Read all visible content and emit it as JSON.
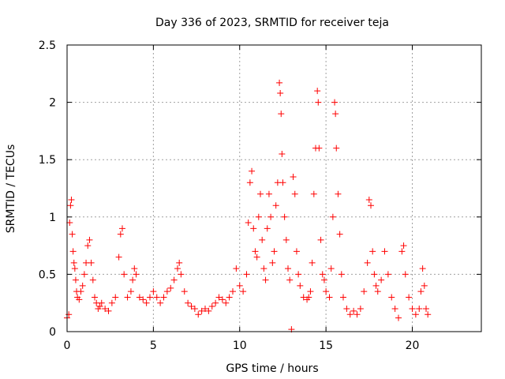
{
  "chart_data": {
    "type": "scatter",
    "title": "Day 336 of 2023, SRMTID for receiver teja",
    "xlabel": "GPS time / hours",
    "ylabel": "SRMTID / TECUs",
    "xlim": [
      0,
      24
    ],
    "ylim": [
      0,
      2.5
    ],
    "xticks": [
      0,
      5,
      10,
      15,
      20
    ],
    "yticks": [
      0,
      0.5,
      1,
      1.5,
      2,
      2.5
    ],
    "xtick_labels": [
      "0",
      "5",
      "10",
      "15",
      "20"
    ],
    "ytick_labels": [
      "0",
      "0.5",
      "1",
      "1.5",
      "2",
      "2.5"
    ],
    "grid": true,
    "marker": "+",
    "series": [
      {
        "name": "SRMTID",
        "color": "#ff0000",
        "points": [
          [
            0.0,
            0.12
          ],
          [
            0.1,
            0.15
          ],
          [
            0.15,
            0.95
          ],
          [
            0.2,
            1.1
          ],
          [
            0.25,
            1.15
          ],
          [
            0.3,
            0.85
          ],
          [
            0.35,
            0.7
          ],
          [
            0.4,
            0.6
          ],
          [
            0.45,
            0.55
          ],
          [
            0.5,
            0.45
          ],
          [
            0.55,
            0.35
          ],
          [
            0.6,
            0.3
          ],
          [
            0.7,
            0.28
          ],
          [
            0.8,
            0.35
          ],
          [
            0.9,
            0.4
          ],
          [
            1.0,
            0.5
          ],
          [
            1.1,
            0.6
          ],
          [
            1.2,
            0.75
          ],
          [
            1.3,
            0.8
          ],
          [
            1.4,
            0.6
          ],
          [
            1.5,
            0.45
          ],
          [
            1.6,
            0.3
          ],
          [
            1.7,
            0.25
          ],
          [
            1.8,
            0.2
          ],
          [
            1.9,
            0.22
          ],
          [
            2.0,
            0.25
          ],
          [
            2.2,
            0.2
          ],
          [
            2.4,
            0.18
          ],
          [
            2.6,
            0.25
          ],
          [
            2.8,
            0.3
          ],
          [
            3.0,
            0.65
          ],
          [
            3.1,
            0.85
          ],
          [
            3.2,
            0.9
          ],
          [
            3.3,
            0.5
          ],
          [
            3.5,
            0.3
          ],
          [
            3.7,
            0.35
          ],
          [
            3.8,
            0.45
          ],
          [
            3.9,
            0.55
          ],
          [
            4.0,
            0.5
          ],
          [
            4.2,
            0.3
          ],
          [
            4.4,
            0.28
          ],
          [
            4.6,
            0.25
          ],
          [
            4.8,
            0.3
          ],
          [
            5.0,
            0.35
          ],
          [
            5.2,
            0.3
          ],
          [
            5.4,
            0.25
          ],
          [
            5.6,
            0.3
          ],
          [
            5.8,
            0.35
          ],
          [
            6.0,
            0.38
          ],
          [
            6.2,
            0.45
          ],
          [
            6.4,
            0.55
          ],
          [
            6.5,
            0.6
          ],
          [
            6.6,
            0.5
          ],
          [
            6.8,
            0.35
          ],
          [
            7.0,
            0.25
          ],
          [
            7.2,
            0.22
          ],
          [
            7.4,
            0.2
          ],
          [
            7.6,
            0.15
          ],
          [
            7.8,
            0.18
          ],
          [
            8.0,
            0.2
          ],
          [
            8.2,
            0.18
          ],
          [
            8.4,
            0.22
          ],
          [
            8.6,
            0.25
          ],
          [
            8.8,
            0.3
          ],
          [
            9.0,
            0.28
          ],
          [
            9.2,
            0.25
          ],
          [
            9.4,
            0.3
          ],
          [
            9.6,
            0.35
          ],
          [
            9.8,
            0.55
          ],
          [
            10.0,
            0.4
          ],
          [
            10.2,
            0.35
          ],
          [
            10.4,
            0.5
          ],
          [
            10.5,
            0.95
          ],
          [
            10.6,
            1.3
          ],
          [
            10.7,
            1.4
          ],
          [
            10.8,
            0.9
          ],
          [
            10.9,
            0.7
          ],
          [
            11.0,
            0.65
          ],
          [
            11.1,
            1.0
          ],
          [
            11.2,
            1.2
          ],
          [
            11.3,
            0.8
          ],
          [
            11.4,
            0.55
          ],
          [
            11.5,
            0.45
          ],
          [
            11.6,
            0.9
          ],
          [
            11.7,
            1.2
          ],
          [
            11.8,
            1.0
          ],
          [
            11.9,
            0.6
          ],
          [
            12.0,
            0.7
          ],
          [
            12.1,
            1.1
          ],
          [
            12.2,
            1.3
          ],
          [
            12.3,
            2.17
          ],
          [
            12.35,
            2.08
          ],
          [
            12.4,
            1.9
          ],
          [
            12.45,
            1.55
          ],
          [
            12.5,
            1.3
          ],
          [
            12.6,
            1.0
          ],
          [
            12.7,
            0.8
          ],
          [
            12.8,
            0.55
          ],
          [
            12.9,
            0.45
          ],
          [
            13.0,
            0.02
          ],
          [
            13.1,
            1.35
          ],
          [
            13.2,
            1.2
          ],
          [
            13.3,
            0.7
          ],
          [
            13.4,
            0.5
          ],
          [
            13.5,
            0.4
          ],
          [
            13.7,
            0.3
          ],
          [
            13.9,
            0.28
          ],
          [
            14.0,
            0.3
          ],
          [
            14.1,
            0.35
          ],
          [
            14.2,
            0.6
          ],
          [
            14.3,
            1.2
          ],
          [
            14.4,
            1.6
          ],
          [
            14.5,
            2.1
          ],
          [
            14.55,
            2.0
          ],
          [
            14.6,
            1.6
          ],
          [
            14.7,
            0.8
          ],
          [
            14.8,
            0.5
          ],
          [
            14.9,
            0.45
          ],
          [
            15.0,
            0.35
          ],
          [
            15.2,
            0.3
          ],
          [
            15.3,
            0.55
          ],
          [
            15.4,
            1.0
          ],
          [
            15.5,
            2.0
          ],
          [
            15.55,
            1.9
          ],
          [
            15.6,
            1.6
          ],
          [
            15.7,
            1.2
          ],
          [
            15.8,
            0.85
          ],
          [
            15.9,
            0.5
          ],
          [
            16.0,
            0.3
          ],
          [
            16.2,
            0.2
          ],
          [
            16.4,
            0.15
          ],
          [
            16.6,
            0.18
          ],
          [
            16.8,
            0.15
          ],
          [
            17.0,
            0.2
          ],
          [
            17.2,
            0.35
          ],
          [
            17.4,
            0.6
          ],
          [
            17.5,
            1.15
          ],
          [
            17.6,
            1.1
          ],
          [
            17.7,
            0.7
          ],
          [
            17.8,
            0.5
          ],
          [
            17.9,
            0.4
          ],
          [
            18.0,
            0.35
          ],
          [
            18.2,
            0.45
          ],
          [
            18.4,
            0.7
          ],
          [
            18.6,
            0.5
          ],
          [
            18.8,
            0.3
          ],
          [
            19.0,
            0.2
          ],
          [
            19.2,
            0.12
          ],
          [
            19.4,
            0.7
          ],
          [
            19.5,
            0.75
          ],
          [
            19.6,
            0.5
          ],
          [
            19.8,
            0.3
          ],
          [
            20.0,
            0.2
          ],
          [
            20.2,
            0.15
          ],
          [
            20.4,
            0.2
          ],
          [
            20.5,
            0.35
          ],
          [
            20.6,
            0.55
          ],
          [
            20.7,
            0.4
          ],
          [
            20.8,
            0.2
          ],
          [
            20.9,
            0.15
          ]
        ]
      }
    ]
  }
}
